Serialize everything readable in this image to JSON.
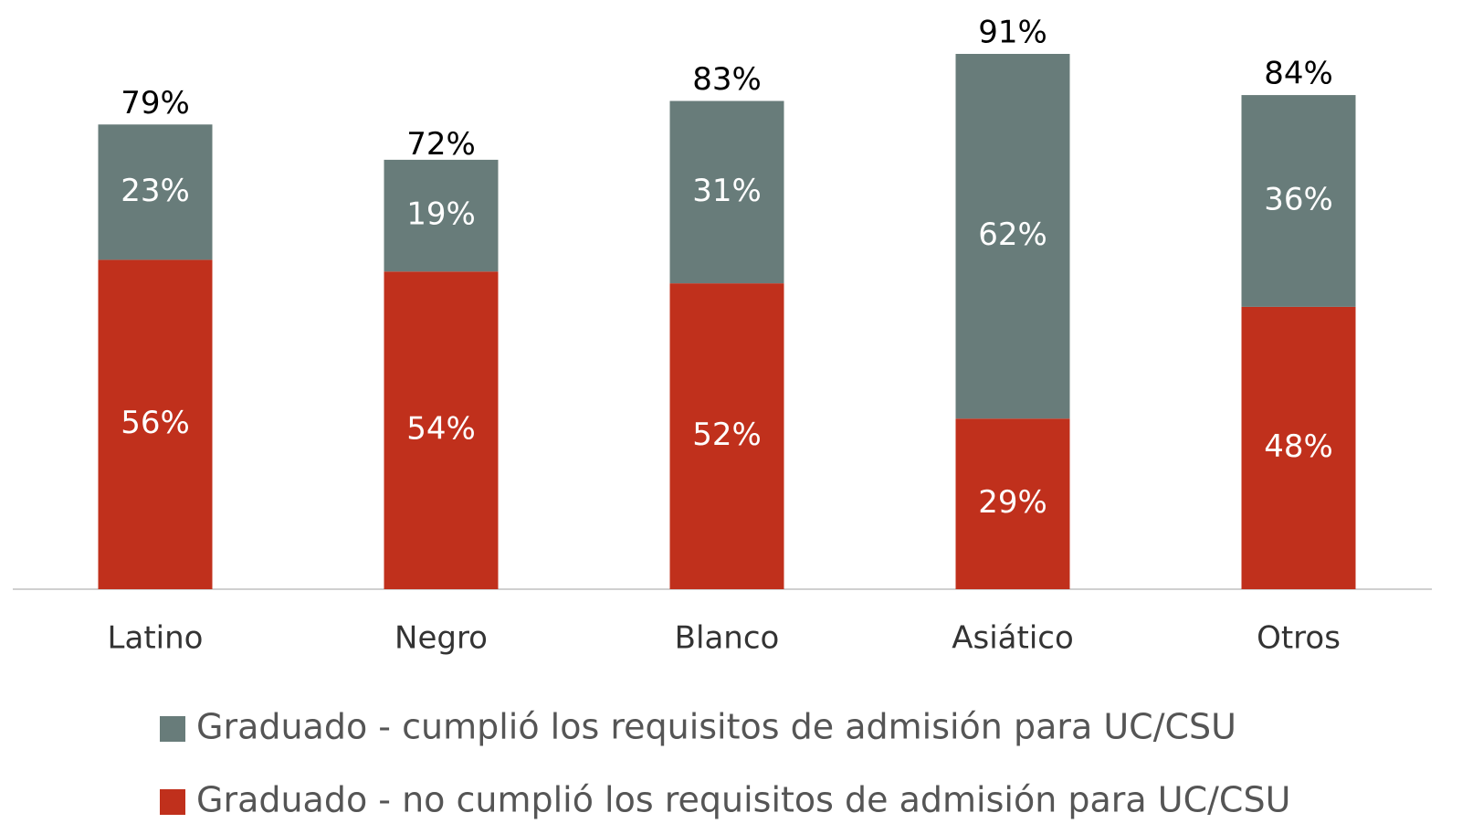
{
  "chart_data": {
    "type": "stacked_bar",
    "categories": [
      "Latino",
      "Negro",
      "Blanco",
      "Asiático",
      "Otros"
    ],
    "series": [
      {
        "name": "Graduado - no cumplió los requisitos de admisión para UC/CSU",
        "color": "#c0301c",
        "values": [
          56,
          54,
          52,
          29,
          48
        ]
      },
      {
        "name": "Graduado - cumplió los requisitos de admisión para UC/CSU",
        "color": "#687c7a",
        "values": [
          23,
          19,
          31,
          62,
          36
        ]
      }
    ],
    "value_labels": [
      [
        "56%",
        "54%",
        "52%",
        "29%",
        "48%"
      ],
      [
        "23%",
        "19%",
        "31%",
        "62%",
        "36%"
      ]
    ],
    "totals": [
      79,
      72,
      83,
      91,
      84
    ],
    "total_labels": [
      "79%",
      "72%",
      "83%",
      "91%",
      "84%"
    ]
  }
}
